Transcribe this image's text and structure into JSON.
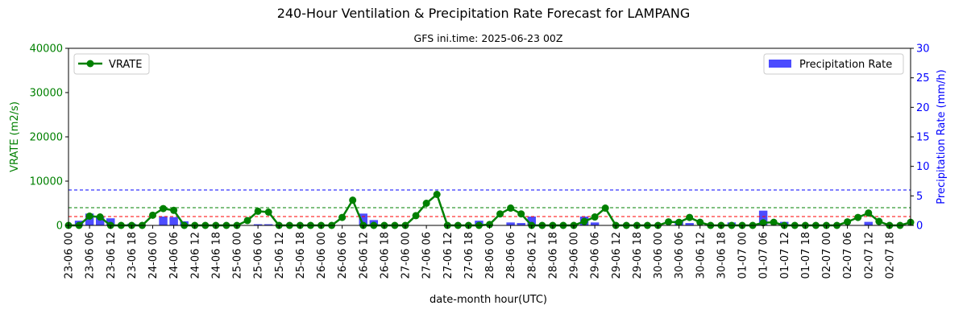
{
  "chart_data": {
    "type": "bar+line",
    "title": "240-Hour Ventilation & Precipitation Rate Forecast for LAMPANG",
    "subtitle": "GFS ini.time: 2025-06-23 00Z",
    "xlabel": "date-month hour(UTC)",
    "ylabel_left": "VRATE (m2/s)",
    "ylabel_right": "Precipitation Rate (mm/h)",
    "ylim_left": [
      0,
      40000
    ],
    "ylim_right": [
      0,
      30
    ],
    "yticks_left": [
      "0",
      "10000",
      "20000",
      "30000",
      "40000"
    ],
    "yticks_right": [
      "0",
      "5",
      "10",
      "15",
      "20",
      "25",
      "30"
    ],
    "grid": false,
    "x_tick_labels": [
      "23-06 00",
      "23-06 06",
      "23-06 12",
      "23-06 18",
      "24-06 00",
      "24-06 06",
      "24-06 12",
      "24-06 18",
      "25-06 00",
      "25-06 06",
      "25-06 12",
      "25-06 18",
      "26-06 00",
      "26-06 06",
      "26-06 12",
      "26-06 18",
      "27-06 00",
      "27-06 06",
      "27-06 12",
      "27-06 18",
      "28-06 00",
      "28-06 06",
      "28-06 12",
      "28-06 18",
      "29-06 00",
      "29-06 06",
      "29-06 12",
      "29-06 18",
      "30-06 00",
      "30-06 06",
      "30-06 12",
      "30-06 18",
      "01-07 00",
      "01-07 06",
      "01-07 12",
      "01-07 18",
      "02-07 00",
      "02-07 06",
      "02-07 12",
      "02-07 18"
    ],
    "thresholds_left": [
      {
        "value": 2000,
        "color": "#ff0000"
      },
      {
        "value": 4000,
        "color": "#008000"
      }
    ],
    "thresholds_right": [
      {
        "value": 6,
        "color": "#0000ff"
      }
    ],
    "series": [
      {
        "name": "VRATE",
        "type": "line",
        "axis": "left",
        "color": "#008000",
        "values": [
          0,
          0,
          2100,
          1900,
          0,
          0,
          0,
          0,
          2300,
          3800,
          3400,
          0,
          0,
          0,
          0,
          0,
          0,
          1100,
          3200,
          3000,
          0,
          0,
          0,
          0,
          0,
          0,
          1800,
          5700,
          0,
          0,
          0,
          0,
          0,
          2200,
          5000,
          7000,
          0,
          0,
          0,
          0,
          200,
          2600,
          3900,
          2600,
          0,
          0,
          0,
          0,
          0,
          900,
          1900,
          3900,
          0,
          0,
          0,
          0,
          0,
          800,
          700,
          1800,
          700,
          0,
          0,
          0,
          0,
          0,
          600,
          700,
          0,
          0,
          0,
          0,
          0,
          0,
          800,
          1800,
          2800,
          900,
          0,
          0,
          700
        ]
      },
      {
        "name": "Precipitation Rate",
        "type": "bar",
        "axis": "right",
        "color": "#0000ff",
        "values": [
          0,
          0.8,
          2.0,
          1.5,
          1.2,
          0,
          0.3,
          0,
          0,
          1.5,
          1.4,
          0.7,
          0,
          0,
          0,
          0,
          0,
          0,
          0.2,
          0.2,
          0,
          0,
          0,
          0,
          0,
          0,
          0,
          0,
          2.0,
          0.9,
          0,
          0,
          0,
          0,
          0,
          0,
          0,
          0,
          0,
          0.8,
          0,
          0,
          0.5,
          0.4,
          1.5,
          0,
          0,
          0,
          0,
          1.5,
          0.5,
          0,
          0,
          0,
          0,
          0,
          0,
          0,
          0.8,
          0.4,
          0,
          0,
          0,
          0.5,
          0,
          0,
          2.5,
          0,
          0.6,
          0,
          0,
          0,
          0,
          0,
          0,
          0,
          0.6,
          0,
          0,
          0,
          0
        ]
      }
    ],
    "legend": [
      {
        "label": "VRATE",
        "placement": "top-left"
      },
      {
        "label": "Precipitation Rate",
        "placement": "top-right"
      }
    ]
  }
}
